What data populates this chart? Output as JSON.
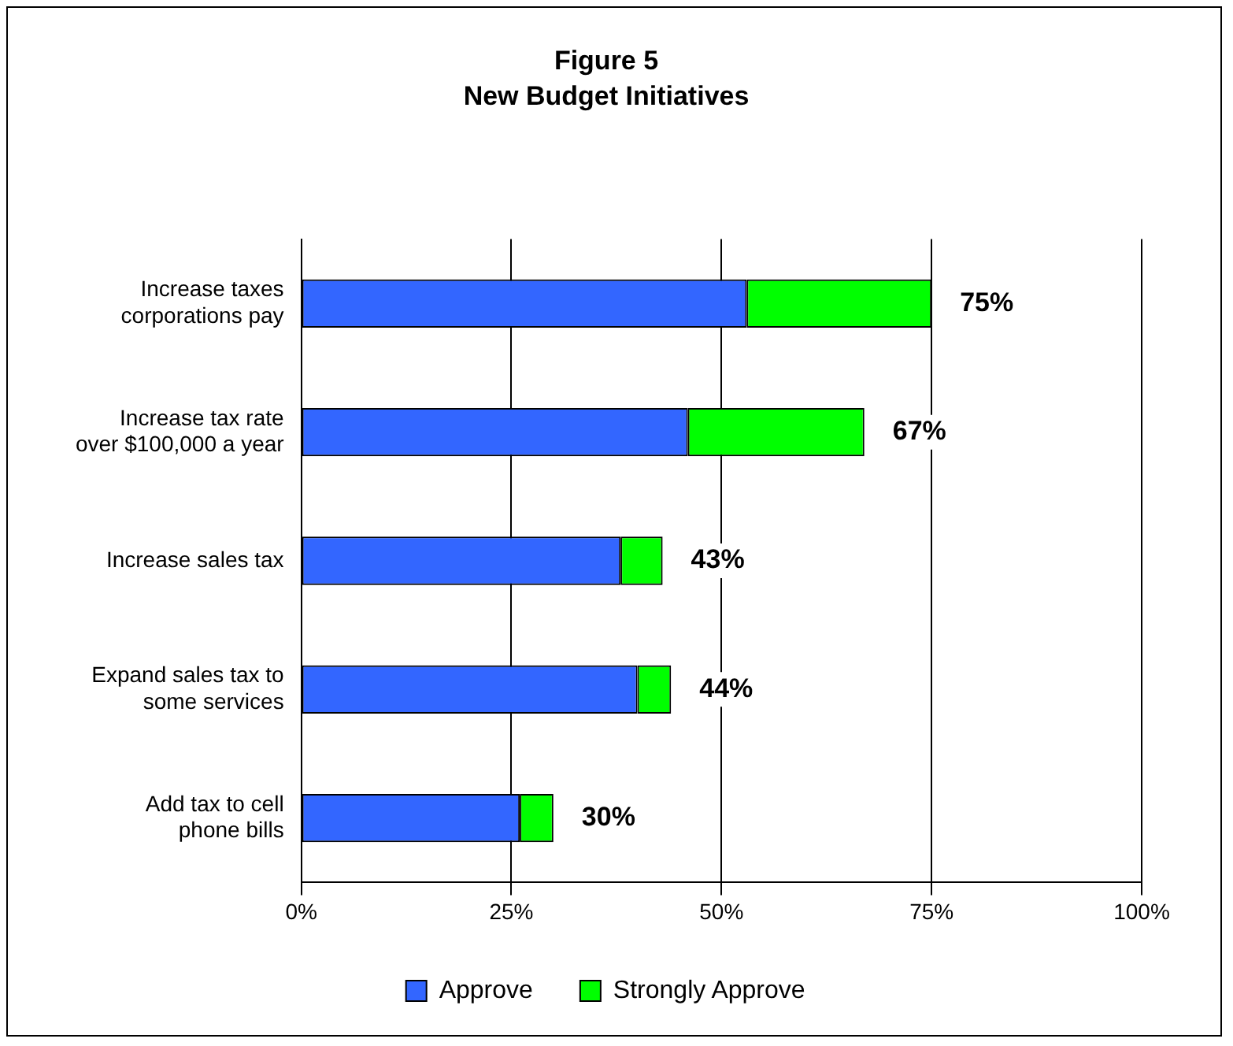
{
  "chart_data": {
    "type": "bar",
    "title": "Figure 5",
    "subtitle": "New Budget Initiatives",
    "orientation": "horizontal",
    "stacked": true,
    "categories": [
      "Increase taxes\ncorporations pay",
      "Increase tax rate\nover $100,000 a year",
      "Increase sales tax",
      "Expand sales tax to\nsome services",
      "Add tax to cell\nphone bills"
    ],
    "series": [
      {
        "name": "Approve",
        "color": "#3366ff",
        "values": [
          53,
          46,
          38,
          40,
          26
        ]
      },
      {
        "name": "Strongly Approve",
        "color": "#00ff00",
        "values": [
          22,
          21,
          5,
          4,
          4
        ]
      }
    ],
    "totals": [
      "75%",
      "67%",
      "43%",
      "44%",
      "30%"
    ],
    "xlim": [
      0,
      100
    ],
    "xticks": [
      {
        "value": 0,
        "label": "0%"
      },
      {
        "value": 25,
        "label": "25%"
      },
      {
        "value": 50,
        "label": "50%"
      },
      {
        "value": 75,
        "label": "75%"
      },
      {
        "value": 100,
        "label": "100%"
      }
    ],
    "grid": "x",
    "legend": "bottom"
  }
}
